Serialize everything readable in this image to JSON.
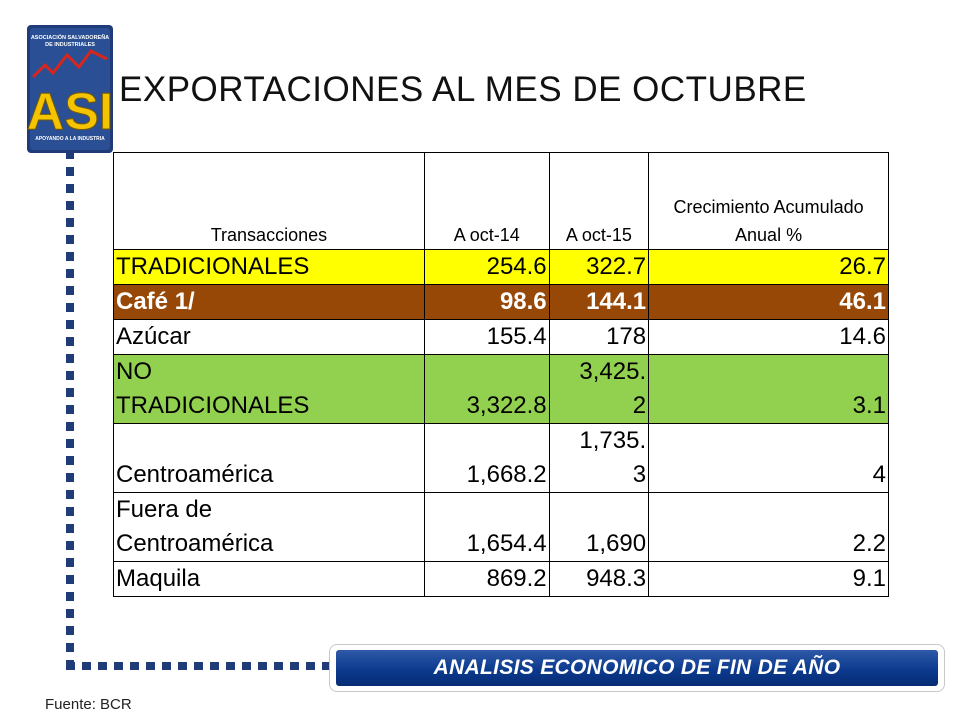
{
  "logo": {
    "text_top": "ASOCIACIÓN SALVADOREÑA DE INDUSTRIALES",
    "letters": "ASI",
    "text_bottom": "APOYANDO A LA INDUSTRIA",
    "colors": {
      "frame": "#1f3c78",
      "letters": "#f5c400",
      "accent": "#d8261c"
    }
  },
  "title": "EXPORTACIONES AL MES DE OCTUBRE",
  "table": {
    "headers": [
      "Transacciones",
      "A oct-14",
      "A oct-15",
      "Crecimiento Acumulado Anual %"
    ],
    "rows": [
      {
        "label": "TRADICIONALES",
        "oct14": "254.6",
        "oct15": "322.7",
        "growth": "26.7"
      },
      {
        "label": "Café 1/",
        "oct14": "98.6",
        "oct15": "144.1",
        "growth": "46.1"
      },
      {
        "label": "Azúcar",
        "oct14": "155.4",
        "oct15": "178",
        "growth": "14.6"
      },
      {
        "label_line1": "NO",
        "label_line2": "TRADICIONALES",
        "oct14": "3,322.8",
        "oct15_line1": "3,425.",
        "oct15_line2": "2",
        "growth": "3.1"
      },
      {
        "label": "Centroamérica",
        "oct14": "1,668.2",
        "oct15_line1": "1,735.",
        "oct15_line2": "3",
        "growth": "4"
      },
      {
        "label_line1": "Fuera de",
        "label_line2": "Centroamérica",
        "oct14": "1,654.4",
        "oct15": "1,690",
        "growth": "2.2"
      },
      {
        "label": "Maquila",
        "oct14": "869.2",
        "oct15": "948.3",
        "growth": "9.1"
      }
    ]
  },
  "banner": "ANALISIS ECONOMICO DE FIN DE AÑO",
  "source": "Fuente: BCR"
}
